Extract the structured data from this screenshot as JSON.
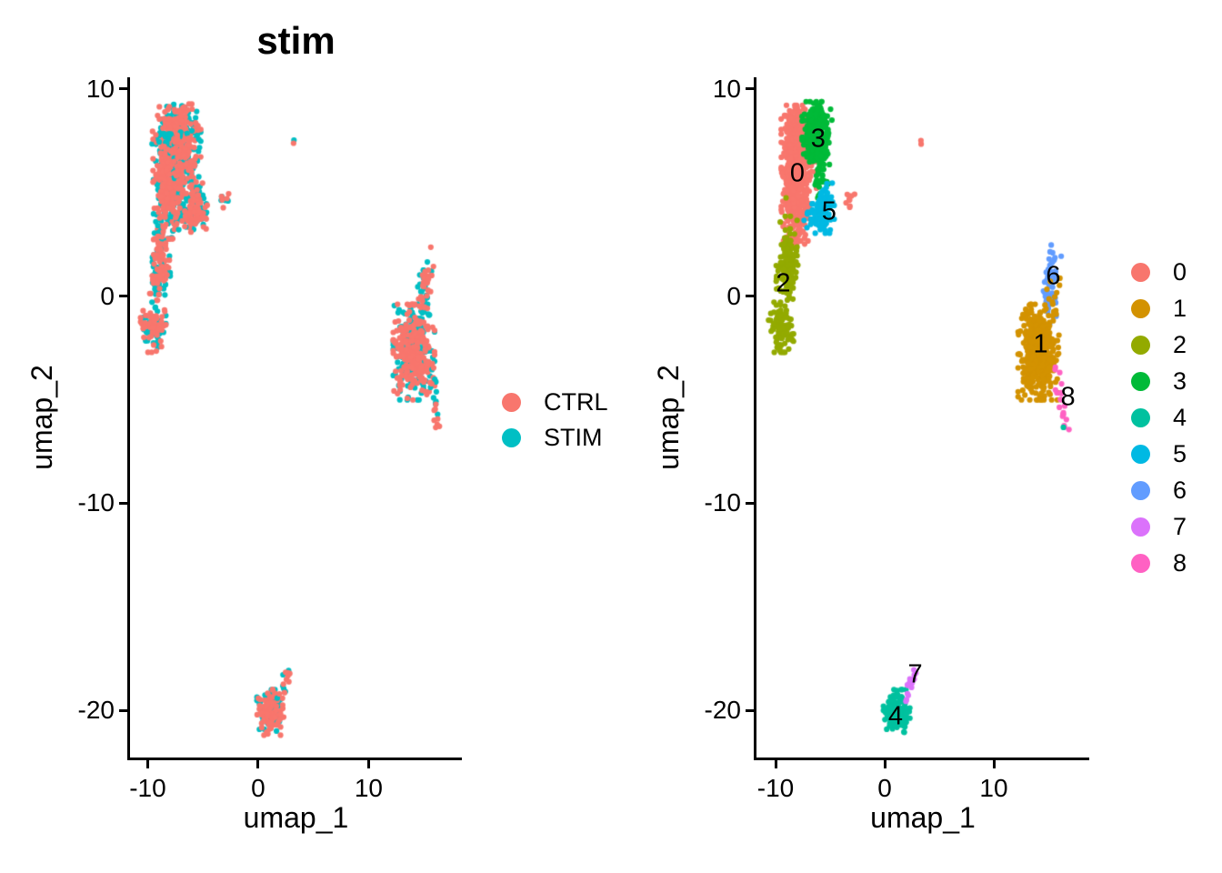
{
  "page": {
    "background": "#FFFFFF"
  },
  "chart_data": [
    {
      "type": "scatter",
      "panel": "left",
      "title": "stim",
      "xlabel": "umap_1",
      "ylabel": "umap_2",
      "xlim": [
        -11.6,
        18.44
      ],
      "ylim": [
        -22.28,
        10.57
      ],
      "x_ticks": [
        -10,
        0,
        10
      ],
      "y_ticks": [
        10,
        0,
        -10,
        -20
      ],
      "grid": false,
      "legend_position": "right",
      "legend": [
        {
          "label": "CTRL",
          "color": "#F8766D"
        },
        {
          "label": "STIM",
          "color": "#00BFC4"
        }
      ],
      "groups": [
        {
          "name": "CTRL",
          "color": "#F8766D",
          "fraction": 0.56
        },
        {
          "name": "STIM",
          "color": "#00BFC4",
          "fraction": 0.44
        }
      ],
      "clusters": [
        {
          "shape": "gauss",
          "cx": -7.4,
          "cy": 8.0,
          "sx": 1.0,
          "sy": 0.58,
          "n": 280
        },
        {
          "shape": "gauss",
          "cx": -8.15,
          "cy": 5.3,
          "sx": 0.62,
          "sy": 1.15,
          "n": 430
        },
        {
          "shape": "gauss",
          "cx": -6.7,
          "cy": 6.5,
          "sx": 0.6,
          "sy": 0.7,
          "n": 130
        },
        {
          "shape": "gauss",
          "cx": -5.6,
          "cy": 4.3,
          "sx": 0.45,
          "sy": 0.55,
          "n": 120
        },
        {
          "shape": "gauss",
          "cx": -6.9,
          "cy": 3.8,
          "sx": 0.5,
          "sy": 0.35,
          "n": 30
        },
        {
          "shape": "gauss",
          "cx": -8.8,
          "cy": 2.1,
          "sx": 0.35,
          "sy": 0.8,
          "n": 70
        },
        {
          "shape": "gauss",
          "cx": -8.95,
          "cy": 0.9,
          "sx": 0.45,
          "sy": 0.5,
          "n": 85
        },
        {
          "shape": "gauss",
          "cx": -9.5,
          "cy": -1.5,
          "sx": 0.52,
          "sy": 0.55,
          "n": 100
        },
        {
          "shape": "gauss",
          "cx": -3.1,
          "cy": 4.7,
          "sx": 0.2,
          "sy": 0.28,
          "n": 9
        },
        {
          "shape": "gauss",
          "cx": 3.3,
          "cy": 7.4,
          "sx": 0.07,
          "sy": 0.1,
          "n": 2
        },
        {
          "shape": "line",
          "x1": 15.4,
          "y1": 1.5,
          "x2": 14.8,
          "y2": -0.5,
          "jitter": 0.32,
          "n": 58
        },
        {
          "shape": "gauss",
          "cx": 14.1,
          "cy": -2.7,
          "sx": 0.85,
          "sy": 1.05,
          "n": 430
        },
        {
          "shape": "line",
          "x1": 15.6,
          "y1": -3.6,
          "x2": 16.5,
          "y2": -6.5,
          "jitter": 0.18,
          "n": 22
        },
        {
          "shape": "gauss",
          "cx": 1.1,
          "cy": -20.1,
          "sx": 0.55,
          "sy": 0.5,
          "n": 150
        },
        {
          "shape": "line",
          "x1": 1.9,
          "y1": -19.3,
          "x2": 3.0,
          "y2": -17.9,
          "jitter": 0.13,
          "n": 16
        }
      ]
    },
    {
      "type": "scatter",
      "panel": "right",
      "title": "",
      "xlabel": "umap_1",
      "ylabel": "umap_2",
      "xlim": [
        -11.75,
        18.75
      ],
      "ylim": [
        -22.28,
        10.57
      ],
      "x_ticks": [
        -10,
        0,
        10
      ],
      "y_ticks": [
        10,
        0,
        -10,
        -20
      ],
      "grid": false,
      "legend_position": "right",
      "legend": [
        {
          "label": "0",
          "color": "#F8766D"
        },
        {
          "label": "1",
          "color": "#D39200"
        },
        {
          "label": "2",
          "color": "#93AA00"
        },
        {
          "label": "3",
          "color": "#00BA38"
        },
        {
          "label": "4",
          "color": "#00C19F"
        },
        {
          "label": "5",
          "color": "#00B9E3"
        },
        {
          "label": "6",
          "color": "#619CFF"
        },
        {
          "label": "7",
          "color": "#DB72FB"
        },
        {
          "label": "8",
          "color": "#FF61C3"
        }
      ],
      "clusters": [
        {
          "shape": "gauss",
          "cx": -8.2,
          "cy": 5.2,
          "sx": 0.58,
          "sy": 1.15,
          "n": 440,
          "cluster": "0"
        },
        {
          "shape": "gauss",
          "cx": -7.9,
          "cy": 7.9,
          "sx": 0.72,
          "sy": 0.6,
          "n": 210,
          "cluster": "0"
        },
        {
          "shape": "gauss",
          "cx": -7.35,
          "cy": 6.5,
          "sx": 0.5,
          "sy": 0.6,
          "n": 90,
          "cluster": "0"
        },
        {
          "shape": "gauss",
          "cx": -8.3,
          "cy": 3.1,
          "sx": 0.45,
          "sy": 0.4,
          "n": 18,
          "cluster": "0"
        },
        {
          "shape": "gauss",
          "cx": -6.2,
          "cy": 7.9,
          "sx": 0.62,
          "sy": 0.68,
          "n": 270,
          "cluster": "3"
        },
        {
          "shape": "gauss",
          "cx": -5.95,
          "cy": 6.1,
          "sx": 0.4,
          "sy": 0.75,
          "n": 55,
          "cluster": "3"
        },
        {
          "shape": "gauss",
          "cx": -5.5,
          "cy": 4.25,
          "sx": 0.42,
          "sy": 0.55,
          "n": 110,
          "cluster": "5"
        },
        {
          "shape": "gauss",
          "cx": -6.6,
          "cy": 3.8,
          "sx": 0.5,
          "sy": 0.3,
          "n": 25,
          "cluster": "5"
        },
        {
          "shape": "gauss",
          "cx": -9.0,
          "cy": 4.7,
          "sx": 0.05,
          "sy": 0.05,
          "n": 1,
          "cluster": "2"
        },
        {
          "shape": "gauss",
          "cx": -8.8,
          "cy": 2.1,
          "sx": 0.35,
          "sy": 0.8,
          "n": 70,
          "cluster": "2"
        },
        {
          "shape": "gauss",
          "cx": -8.95,
          "cy": 0.9,
          "sx": 0.45,
          "sy": 0.5,
          "n": 85,
          "cluster": "2"
        },
        {
          "shape": "gauss",
          "cx": -9.5,
          "cy": -1.5,
          "sx": 0.52,
          "sy": 0.55,
          "n": 100,
          "cluster": "2"
        },
        {
          "shape": "gauss",
          "cx": -3.1,
          "cy": 4.7,
          "sx": 0.2,
          "sy": 0.28,
          "n": 9,
          "cluster": "0"
        },
        {
          "shape": "gauss",
          "cx": 3.3,
          "cy": 7.4,
          "sx": 0.07,
          "sy": 0.1,
          "n": 2,
          "cluster": "0"
        },
        {
          "shape": "line",
          "x1": 15.5,
          "y1": 1.6,
          "x2": 15.0,
          "y2": -0.6,
          "jitter": 0.35,
          "n": 55,
          "cluster": "6"
        },
        {
          "shape": "gauss",
          "cx": 15.4,
          "cy": 0.2,
          "sx": 0.3,
          "sy": 0.5,
          "n": 8,
          "cluster": "1"
        },
        {
          "shape": "gauss",
          "cx": 14.1,
          "cy": -2.7,
          "sx": 0.85,
          "sy": 1.05,
          "n": 430,
          "cluster": "1"
        },
        {
          "shape": "line",
          "x1": 15.7,
          "y1": -3.7,
          "x2": 16.6,
          "y2": -6.5,
          "jitter": 0.16,
          "n": 20,
          "cluster": "8"
        },
        {
          "shape": "gauss",
          "cx": 16.4,
          "cy": -6.3,
          "sx": 0.06,
          "sy": 0.08,
          "n": 1,
          "cluster": "4"
        },
        {
          "shape": "gauss",
          "cx": 1.1,
          "cy": -20.1,
          "sx": 0.55,
          "sy": 0.5,
          "n": 150,
          "cluster": "4"
        },
        {
          "shape": "line",
          "x1": 1.9,
          "y1": -19.3,
          "x2": 3.0,
          "y2": -17.9,
          "jitter": 0.13,
          "n": 15,
          "cluster": "7"
        }
      ],
      "cluster_labels": [
        {
          "text": "0",
          "x": -8.0,
          "y": 5.9
        },
        {
          "text": "1",
          "x": 14.3,
          "y": -2.35
        },
        {
          "text": "2",
          "x": -9.3,
          "y": 0.6
        },
        {
          "text": "3",
          "x": -6.1,
          "y": 7.6
        },
        {
          "text": "4",
          "x": 1.0,
          "y": -20.3
        },
        {
          "text": "5",
          "x": -5.1,
          "y": 4.05
        },
        {
          "text": "6",
          "x": 15.45,
          "y": 0.95
        },
        {
          "text": "7",
          "x": 2.8,
          "y": -18.3
        },
        {
          "text": "8",
          "x": 16.8,
          "y": -4.9
        }
      ]
    }
  ]
}
